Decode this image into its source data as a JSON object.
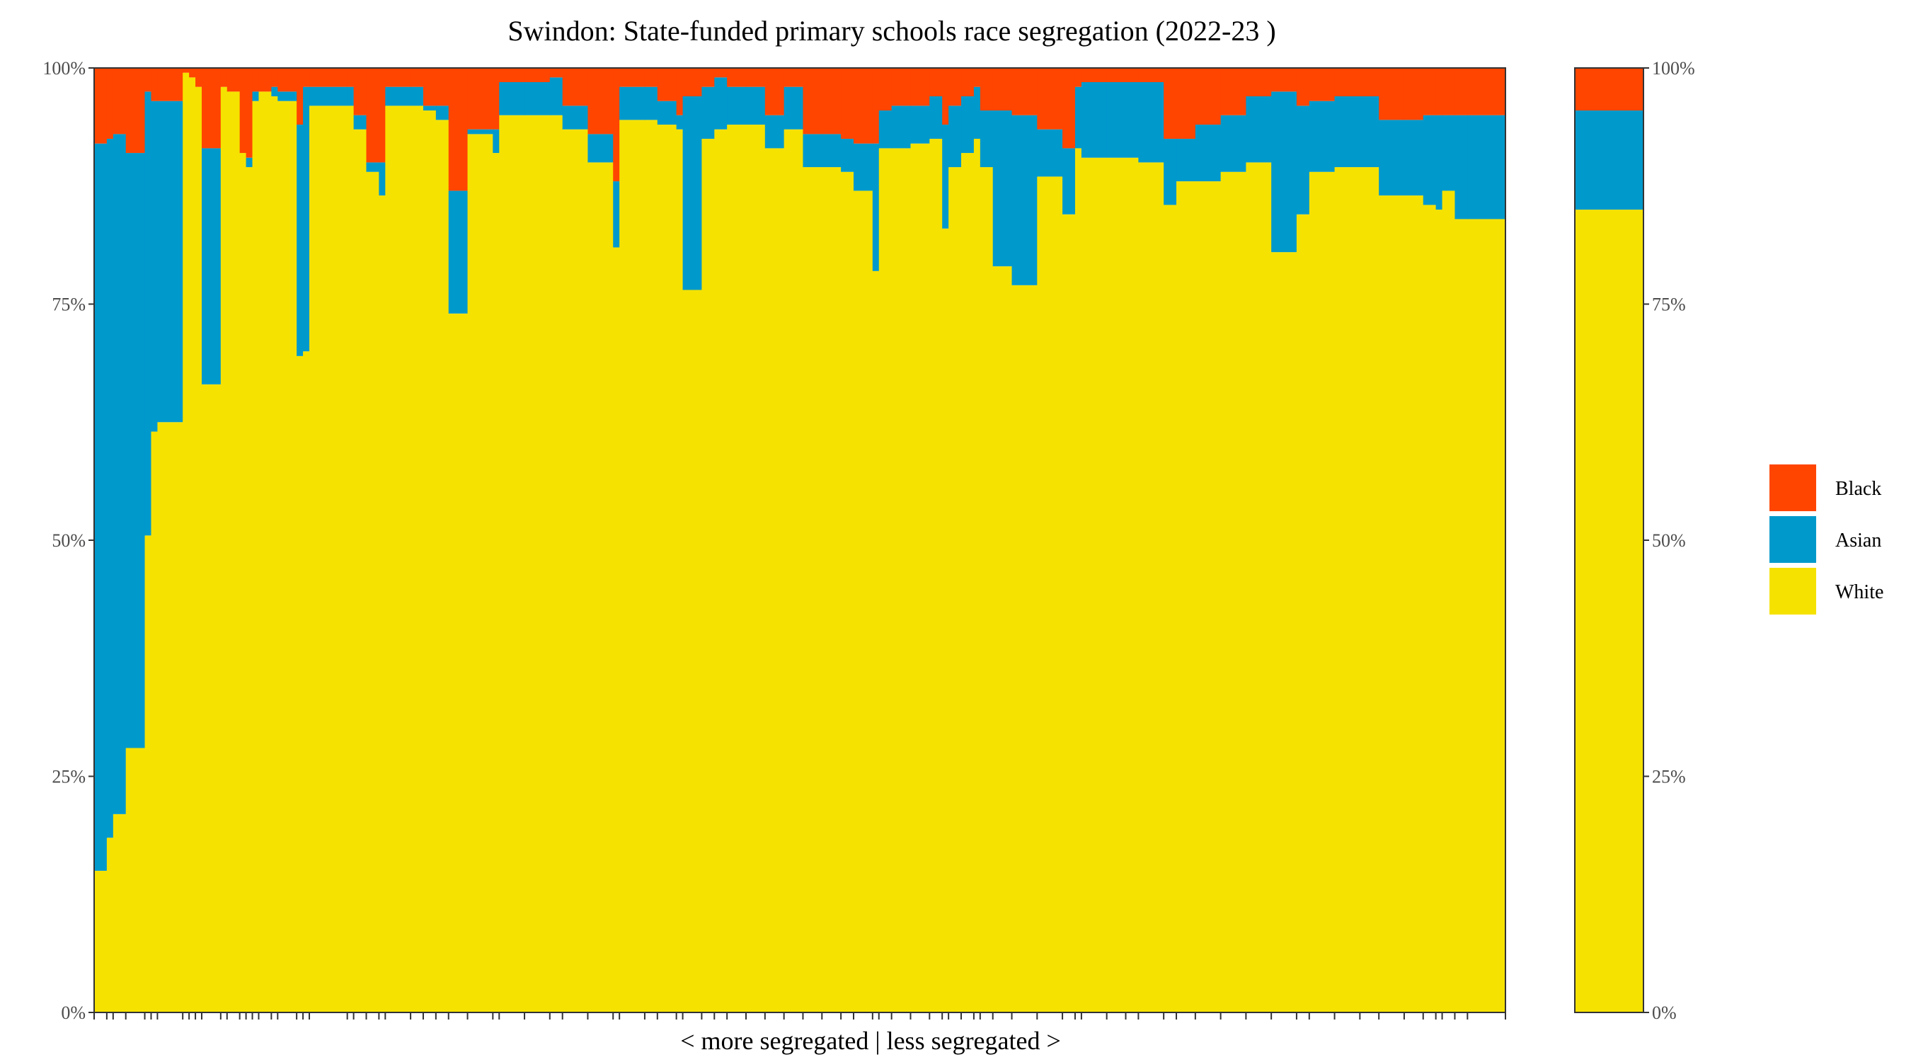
{
  "chart_data": {
    "type": "bar",
    "subtype": "stacked-100-percent-variable-width",
    "title": "Swindon: State-funded primary schools race segregation (2022-23 )",
    "xlabel": "< more segregated | less segregated >",
    "ylabel": "",
    "ylim": [
      0,
      100
    ],
    "y_ticks": [
      "0%",
      "25%",
      "50%",
      "75%",
      "100%"
    ],
    "grid": false,
    "legend_position": "right",
    "legend": [
      {
        "name": "Black",
        "color": "#FF4500"
      },
      {
        "name": "Asian",
        "color": "#0099CC"
      },
      {
        "name": "White",
        "color": "#F5E200"
      }
    ],
    "stack_order": [
      "White",
      "Asian",
      "Black"
    ],
    "series": [
      {
        "name": "White",
        "values": [
          15,
          18.5,
          21,
          28,
          50.5,
          61.5,
          62.5,
          99.5,
          99,
          98,
          66.5,
          98,
          97.5,
          91,
          89.5,
          96.5,
          97.5,
          97,
          96.5,
          69.5,
          70,
          96,
          96,
          93.5,
          89,
          86.5,
          96,
          96,
          95.5,
          94.5,
          74,
          93,
          91,
          95,
          95,
          95,
          93.5,
          90,
          81,
          94.5,
          94.5,
          94,
          93.5,
          76.5,
          92.5,
          93.5,
          94,
          94,
          91.5,
          93.5,
          89.5,
          89.5,
          89,
          87,
          78.5,
          91.5,
          91.5,
          92,
          92.5,
          83,
          89.5,
          91,
          92.5,
          89.5,
          79,
          77,
          88.5,
          84.5,
          91.5,
          90.5,
          90.5,
          90.5,
          90,
          85.5,
          88,
          88,
          89,
          90,
          80.5,
          84.5,
          89,
          89.5,
          89.5,
          86.5,
          86.5,
          85.5,
          85,
          87,
          84,
          84
        ]
      },
      {
        "name": "Asian",
        "values": [
          77,
          74,
          72,
          63,
          47,
          35,
          34,
          0,
          0,
          0,
          25,
          0,
          0,
          0,
          1,
          1,
          0,
          1,
          1,
          24.5,
          28,
          2,
          2,
          1.5,
          1,
          3.5,
          2,
          2,
          0.5,
          1.5,
          13,
          0.5,
          2.5,
          3.5,
          3.5,
          4,
          2.5,
          3,
          7,
          3.5,
          3.5,
          2.5,
          1.5,
          20.5,
          5.5,
          5.5,
          4,
          4,
          3.5,
          4.5,
          3.5,
          3.5,
          3.5,
          5,
          13.5,
          4,
          4.5,
          4,
          4.5,
          11,
          6.5,
          6,
          5.5,
          6,
          16.5,
          18,
          5,
          7,
          6.5,
          8,
          8,
          8,
          8.5,
          7,
          4.5,
          6,
          6,
          7,
          17,
          11.5,
          7.5,
          7.5,
          7.5,
          8,
          8,
          9.5,
          10,
          8,
          11,
          11
        ]
      },
      {
        "name": "Black",
        "values": [
          8,
          7.5,
          7,
          9,
          2.5,
          3.5,
          3.5,
          0.5,
          1,
          2,
          8.5,
          2,
          2.5,
          9,
          9.5,
          2.5,
          2.5,
          2,
          2.5,
          6,
          2,
          2,
          2,
          5,
          10,
          10,
          2,
          2,
          4,
          4,
          13,
          6.5,
          6.5,
          1.5,
          1.5,
          1,
          4,
          7,
          12,
          2,
          2,
          3.5,
          5,
          3,
          2,
          1,
          2,
          2,
          5,
          2,
          7,
          7,
          7.5,
          8,
          8,
          4.5,
          4,
          4,
          3,
          6,
          4,
          3,
          2,
          4.5,
          4.5,
          5,
          6.5,
          8.5,
          2,
          1.5,
          1.5,
          1.5,
          1.5,
          7.5,
          7.5,
          6,
          5,
          3,
          2.5,
          4,
          3.5,
          3,
          3,
          5.5,
          5.5,
          5,
          5,
          5,
          5,
          5
        ]
      }
    ],
    "school_weights": [
      2,
      1,
      2,
      3,
      1,
      1,
      4,
      1,
      1,
      1,
      3,
      1,
      2,
      1,
      1,
      1,
      2,
      1,
      3,
      1,
      1,
      6,
      1,
      2,
      2,
      1,
      4,
      2,
      2,
      2,
      3,
      4,
      1,
      4,
      4,
      2,
      4,
      4,
      1,
      4,
      2,
      3,
      1,
      3,
      2,
      2,
      3,
      3,
      3,
      3,
      3,
      3,
      2,
      3,
      1,
      2,
      3,
      3,
      2,
      1,
      2,
      2,
      1,
      2,
      3,
      4,
      4,
      2,
      1,
      4,
      3,
      2,
      4,
      2,
      3,
      4,
      4,
      4,
      4,
      2,
      4,
      4,
      3,
      4,
      3,
      2,
      1,
      2,
      2,
      6
    ],
    "overall": {
      "label": "",
      "values": {
        "White": 85,
        "Asian": 10.5,
        "Black": 4.5
      }
    }
  }
}
